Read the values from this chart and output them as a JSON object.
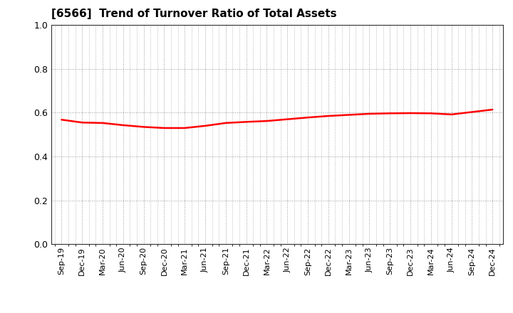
{
  "title": "[6566]  Trend of Turnover Ratio of Total Assets",
  "title_fontsize": 11,
  "line_color": "#ff0000",
  "line_width": 1.8,
  "background_color": "#ffffff",
  "grid_color": "#999999",
  "ylim": [
    0.0,
    1.0
  ],
  "yticks": [
    0.0,
    0.2,
    0.4,
    0.6,
    0.8,
    1.0
  ],
  "x_labels": [
    "Sep-19",
    "Dec-19",
    "Mar-20",
    "Jun-20",
    "Sep-20",
    "Dec-20",
    "Mar-21",
    "Jun-21",
    "Sep-21",
    "Dec-21",
    "Mar-22",
    "Jun-22",
    "Sep-22",
    "Dec-22",
    "Mar-23",
    "Jun-23",
    "Sep-23",
    "Dec-23",
    "Mar-24",
    "Jun-24",
    "Sep-24",
    "Dec-24"
  ],
  "y_values": [
    0.568,
    0.555,
    0.553,
    0.543,
    0.535,
    0.53,
    0.53,
    0.54,
    0.553,
    0.558,
    0.562,
    0.57,
    0.578,
    0.585,
    0.59,
    0.595,
    0.597,
    0.598,
    0.597,
    0.592,
    0.603,
    0.614
  ]
}
